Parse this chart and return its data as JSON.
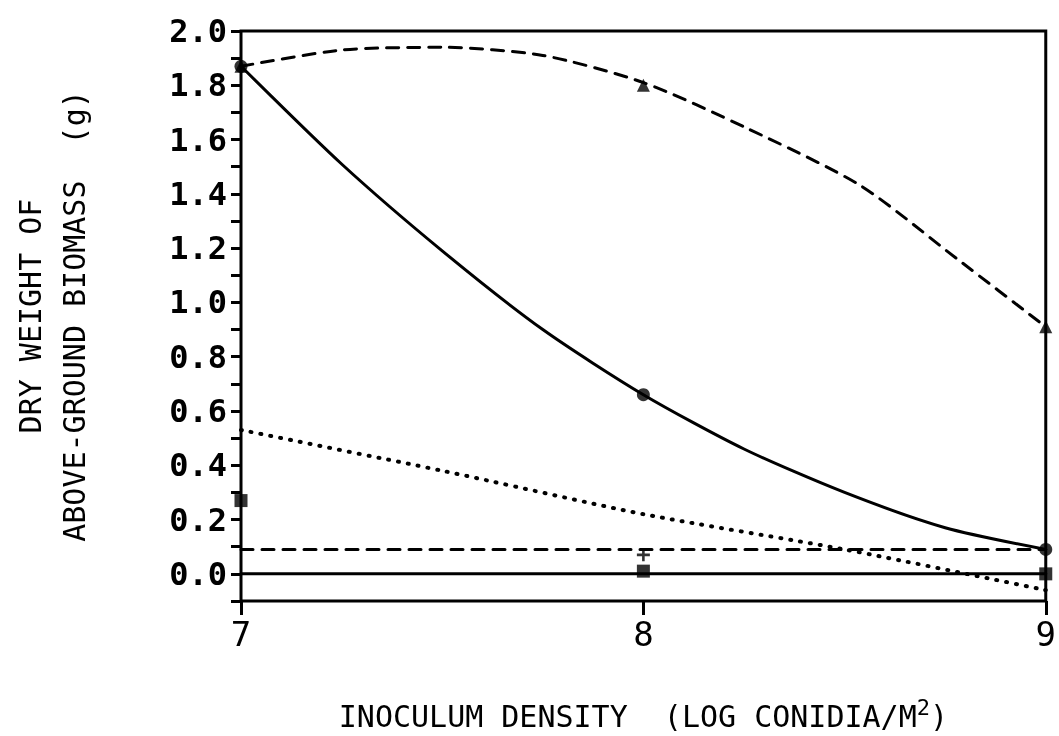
{
  "chart_data": {
    "type": "scatter",
    "xlabel": "INOCULUM DENSITY  (LOG CONIDIA/M$^{2}$)",
    "ylabel": "DRY WEIGHT OF\nABOVE-GROUND BIOMASS  (g)",
    "xlim": [
      7,
      9
    ],
    "xticks": [
      7,
      8,
      9
    ],
    "ylim": [
      -0.1,
      2.0
    ],
    "yticks": [
      {
        "value": -0.1,
        "label": null
      },
      {
        "value": 0,
        "label": "0.0"
      },
      {
        "value": 0.1,
        "label": null
      },
      0.2,
      {
        "value": 0.3,
        "label": null
      },
      0.4,
      {
        "value": 0.5,
        "label": null
      },
      0.6,
      {
        "value": 0.7,
        "label": null
      },
      0.8,
      {
        "value": 0.9,
        "label": null
      },
      {
        "value": 1.0,
        "label": "1.0"
      },
      {
        "value": 1.1,
        "label": null
      },
      1.2,
      {
        "value": 1.3,
        "label": null
      },
      1.4,
      {
        "value": 1.5,
        "label": null
      },
      1.6,
      {
        "value": 1.7,
        "label": null
      },
      1.8,
      {
        "value": 1.9,
        "label": null
      },
      {
        "value": 2.0,
        "label": "2.0"
      }
    ],
    "grid": false,
    "series": [
      {
        "type": "line",
        "color": "#000000",
        "marker": "none",
        "line_style": "dashed",
        "x": [
          7,
          7.25,
          7.5,
          7.75,
          8,
          8.26,
          8.54,
          8.78,
          9
        ],
        "values": [
          1.87,
          1.93,
          1.94,
          1.91,
          1.81,
          1.64,
          1.43,
          1.16,
          0.91
        ]
      },
      {
        "type": "line",
        "color": "#000000",
        "marker": "none",
        "line_style": "solid",
        "x": [
          7,
          7.25,
          7.5,
          7.75,
          8,
          8.25,
          8.5,
          8.75,
          9
        ],
        "values": [
          1.87,
          1.51,
          1.19,
          0.9,
          0.66,
          0.46,
          0.3,
          0.17,
          0.09
        ]
      },
      {
        "type": "line",
        "color": "#000000",
        "marker": "none",
        "line_style": "dotted",
        "x": [
          7,
          7.5,
          8,
          8.5,
          9
        ],
        "values": [
          0.53,
          0.38,
          0.22,
          0.09,
          -0.06
        ]
      },
      {
        "type": "line",
        "color": "#000000",
        "marker": "none",
        "line_style": "dashed",
        "x": [
          7,
          9
        ],
        "values": [
          0.09,
          0.09
        ]
      },
      {
        "type": "line",
        "color": "#000000",
        "marker": "none",
        "line_style": "solid",
        "x": [
          7,
          9
        ],
        "values": [
          0.0,
          0.0
        ]
      },
      {
        "color": "#000000",
        "marker": "circle",
        "x": [
          7,
          8,
          9
        ],
        "values": [
          1.87,
          0.66,
          0.09
        ]
      },
      {
        "color": "#000000",
        "marker": "triangle",
        "x": [
          7,
          8,
          9
        ],
        "values": [
          1.87,
          1.8,
          0.91
        ]
      },
      {
        "color": "#000000",
        "marker": "square",
        "x": [
          7,
          8,
          9
        ],
        "values": [
          0.27,
          0.01,
          0.0
        ]
      },
      {
        "color": "#000000",
        "marker": "cross",
        "x": [
          8
        ],
        "values": [
          0.07
        ]
      }
    ]
  }
}
